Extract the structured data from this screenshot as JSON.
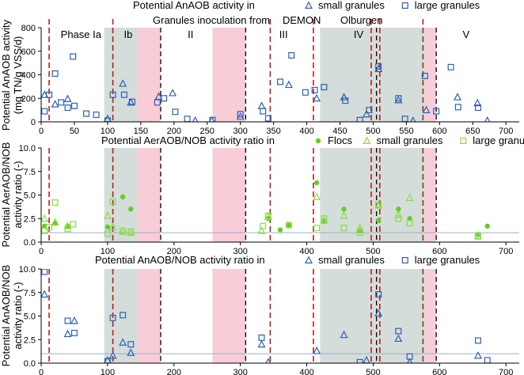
{
  "colors": {
    "blue": "#2E5FB5",
    "green": "#66CC22",
    "greenLight": "#88DD44",
    "grey": "#D4DDD9",
    "pink": "#F8CDD8",
    "red": "#B81E1E",
    "black": "#000000",
    "hline": "#9EB0C6"
  },
  "chart_data": [
    {
      "type": "scatter",
      "id": "p1",
      "title_prefix": "Potential AnAOB activity in",
      "legend": [
        {
          "marker": "triangle",
          "color": "blue",
          "label": "small granules"
        },
        {
          "marker": "square",
          "color": "blue",
          "label": "large granules"
        }
      ],
      "ylabel": [
        "Potential AnAOB activity",
        "(mg TN/g VSS/d)"
      ],
      "xlim": [
        0,
        720
      ],
      "ylim": [
        0,
        800
      ],
      "xticks": [
        0,
        50,
        100,
        150,
        200,
        250,
        300,
        350,
        400,
        450,
        500,
        550,
        600,
        650,
        700
      ],
      "yticks": [
        0,
        200,
        400,
        600,
        800
      ],
      "series": [
        {
          "name": "small granules",
          "marker": "triangle",
          "color": "blue",
          "points": [
            [
              5,
              230
            ],
            [
              21,
              150
            ],
            [
              40,
              195
            ],
            [
              100,
              25
            ],
            [
              123,
              325
            ],
            [
              135,
              165
            ],
            [
              177,
              215
            ],
            [
              198,
              245
            ],
            [
              232,
              10
            ],
            [
              257,
              10
            ],
            [
              300,
              45
            ],
            [
              332,
              135
            ],
            [
              373,
              315
            ],
            [
              415,
              200
            ],
            [
              456,
              210
            ],
            [
              490,
              65
            ],
            [
              508,
              450
            ],
            [
              538,
              185
            ],
            [
              560,
              10
            ],
            [
              580,
              100
            ],
            [
              627,
              210
            ],
            [
              657,
              160
            ],
            [
              672,
              10
            ]
          ]
        },
        {
          "name": "large granules",
          "marker": "square",
          "color": "blue",
          "points": [
            [
              5,
              90
            ],
            [
              12,
              230
            ],
            [
              21,
              410
            ],
            [
              30,
              165
            ],
            [
              40,
              120
            ],
            [
              48,
              555
            ],
            [
              50,
              135
            ],
            [
              68,
              70
            ],
            [
              83,
              60
            ],
            [
              100,
              10
            ],
            [
              108,
              230
            ],
            [
              125,
              230
            ],
            [
              137,
              170
            ],
            [
              175,
              165
            ],
            [
              185,
              200
            ],
            [
              202,
              85
            ],
            [
              220,
              25
            ],
            [
              258,
              15
            ],
            [
              300,
              65
            ],
            [
              334,
              90
            ],
            [
              342,
              30
            ],
            [
              360,
              340
            ],
            [
              377,
              565
            ],
            [
              398,
              250
            ],
            [
              412,
              270
            ],
            [
              426,
              295
            ],
            [
              458,
              180
            ],
            [
              480,
              15
            ],
            [
              494,
              100
            ],
            [
              508,
              470
            ],
            [
              538,
              200
            ],
            [
              548,
              25
            ],
            [
              578,
              390
            ],
            [
              595,
              90
            ],
            [
              617,
              465
            ],
            [
              628,
              125
            ],
            [
              658,
              120
            ]
          ]
        }
      ]
    },
    {
      "type": "scatter",
      "id": "p2",
      "title_prefix": "Potential AerAOB/NOB activity ratio in",
      "legend": [
        {
          "marker": "circle",
          "color": "green",
          "label": "Flocs"
        },
        {
          "marker": "triangle",
          "color": "greenLight",
          "label": "small granules"
        },
        {
          "marker": "square",
          "color": "greenLight",
          "label": "large granules"
        }
      ],
      "ylabel": [
        "Potential AerAOB/NOB",
        "activity ratio (-)"
      ],
      "xlim": [
        0,
        720
      ],
      "ylim": [
        0,
        10
      ],
      "xticks": [
        0,
        100,
        200,
        300,
        400,
        500,
        600,
        700
      ],
      "yticks": [
        0,
        2.5,
        5.0,
        7.5,
        10.0
      ],
      "reference_line": 1.0,
      "series": [
        {
          "name": "Flocs",
          "marker": "circle",
          "color": "green",
          "points": [
            [
              5,
              1.7
            ],
            [
              21,
              2.0
            ],
            [
              40,
              1.7
            ],
            [
              100,
              1.6
            ],
            [
              123,
              4.8
            ],
            [
              135,
              3.5
            ],
            [
              342,
              2.5
            ],
            [
              360,
              1.3
            ],
            [
              373,
              1.8
            ],
            [
              415,
              6.3
            ],
            [
              426,
              2.2
            ],
            [
              456,
              3.5
            ],
            [
              480,
              1.2
            ],
            [
              508,
              2.3
            ],
            [
              538,
              3.5
            ],
            [
              555,
              2.5
            ],
            [
              658,
              0.8
            ],
            [
              672,
              1.7
            ]
          ]
        },
        {
          "name": "small granules",
          "marker": "triangle",
          "color": "greenLight",
          "points": [
            [
              5,
              2.5
            ],
            [
              21,
              2.1
            ],
            [
              40,
              1.7
            ],
            [
              100,
              2.8
            ],
            [
              108,
              1.6
            ],
            [
              123,
              1.1
            ],
            [
              135,
              1.0
            ],
            [
              332,
              1.2
            ],
            [
              342,
              2.7
            ],
            [
              415,
              4.8
            ],
            [
              426,
              2.3
            ],
            [
              456,
              2.8
            ],
            [
              480,
              1.5
            ],
            [
              508,
              3.9
            ],
            [
              538,
              2.9
            ],
            [
              555,
              4.7
            ],
            [
              658,
              0.7
            ]
          ]
        },
        {
          "name": "large granules",
          "marker": "square",
          "color": "greenLight",
          "points": [
            [
              5,
              1.2
            ],
            [
              12,
              1.6
            ],
            [
              21,
              4.2
            ],
            [
              40,
              1.4
            ],
            [
              48,
              1.9
            ],
            [
              100,
              0.9
            ],
            [
              108,
              4.3
            ],
            [
              123,
              1.2
            ],
            [
              135,
              1.1
            ],
            [
              334,
              1.7
            ],
            [
              342,
              2.8
            ],
            [
              373,
              1.8
            ],
            [
              415,
              1.5
            ],
            [
              426,
              2.5
            ],
            [
              456,
              1.5
            ],
            [
              480,
              1.0
            ],
            [
              508,
              4.0
            ],
            [
              538,
              2.5
            ],
            [
              555,
              2.0
            ],
            [
              658,
              0.6
            ]
          ]
        }
      ]
    },
    {
      "type": "scatter",
      "id": "p3",
      "title_prefix": "Potential AnAOB/NOB activity ratio in",
      "legend": [
        {
          "marker": "triangle",
          "color": "blue",
          "label": "small granules"
        },
        {
          "marker": "square",
          "color": "blue",
          "label": "large granules"
        }
      ],
      "ylabel": [
        "Potential AnAOB/NOB",
        "activity ratio (-)"
      ],
      "xlim": [
        0,
        720
      ],
      "ylim": [
        0,
        10
      ],
      "xticks": [
        0,
        100,
        200,
        300,
        400,
        500,
        600,
        700
      ],
      "yticks": [
        0,
        2.5,
        5.0,
        7.5,
        10.0
      ],
      "reference_line": 1.0,
      "series": [
        {
          "name": "small granules",
          "marker": "triangle",
          "color": "blue",
          "points": [
            [
              5,
              7.3
            ],
            [
              40,
              3.1
            ],
            [
              50,
              4.5
            ],
            [
              100,
              0.3
            ],
            [
              108,
              0.8
            ],
            [
              123,
              2.2
            ],
            [
              135,
              1.1
            ],
            [
              332,
              2.0
            ],
            [
              342,
              0.1
            ],
            [
              415,
              1.3
            ],
            [
              456,
              3.0
            ],
            [
              490,
              0.3
            ],
            [
              508,
              5.3
            ],
            [
              538,
              2.6
            ],
            [
              555,
              0.1
            ],
            [
              658,
              0.8
            ]
          ]
        },
        {
          "name": "large granules",
          "marker": "square",
          "color": "blue",
          "points": [
            [
              5,
              9.7
            ],
            [
              40,
              4.5
            ],
            [
              50,
              3.2
            ],
            [
              100,
              0.2
            ],
            [
              108,
              4.8
            ],
            [
              123,
              5.1
            ],
            [
              135,
              2.0
            ],
            [
              332,
              2.7
            ],
            [
              480,
              0.1
            ],
            [
              508,
              7.3
            ],
            [
              538,
              3.4
            ],
            [
              555,
              0.7
            ],
            [
              658,
              2.4
            ],
            [
              672,
              0.3
            ]
          ]
        }
      ]
    }
  ],
  "grey_bands": [
    [
      95,
      145
    ],
    [
      420,
      580
    ]
  ],
  "pink_bands": [
    [
      145,
      180
    ],
    [
      258,
      308
    ],
    [
      580,
      595
    ]
  ],
  "red_dashed_lines": [
    12,
    108,
    345,
    410,
    497,
    510,
    575
  ],
  "black_dashed_lines": [
    180,
    308,
    505,
    595
  ],
  "phases": [
    {
      "label": "Phase Ia",
      "x": 60
    },
    {
      "label": "Ib",
      "x": 131
    },
    {
      "label": "II",
      "x": 225
    },
    {
      "label": "III",
      "x": 365
    },
    {
      "label": "IV",
      "x": 478
    },
    {
      "label": "V",
      "x": 640
    }
  ],
  "annotations": {
    "inoculation": "Granules inoculation from",
    "demon": "DEMON",
    "olburgen": "Olburgen"
  }
}
